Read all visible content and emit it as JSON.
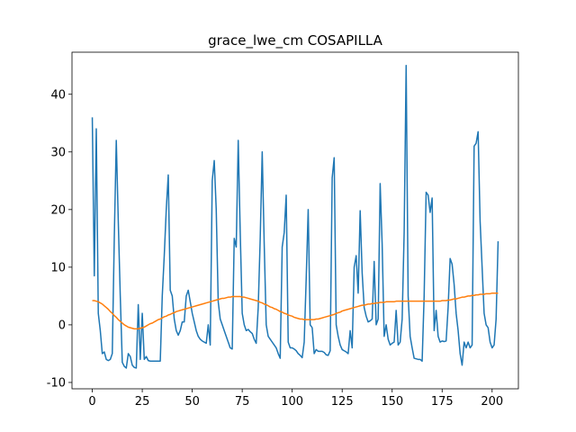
{
  "chart_data": {
    "type": "line",
    "title": "grace_lwe_cm COSAPILLA",
    "x": [
      0,
      1,
      2,
      3,
      4,
      5,
      6,
      7,
      8,
      9,
      10,
      11,
      12,
      13,
      14,
      15,
      16,
      17,
      18,
      19,
      20,
      21,
      22,
      23,
      24,
      25,
      26,
      27,
      28,
      29,
      30,
      31,
      32,
      33,
      34,
      35,
      36,
      37,
      38,
      39,
      40,
      41,
      42,
      43,
      44,
      45,
      46,
      47,
      48,
      49,
      50,
      51,
      52,
      53,
      54,
      55,
      56,
      57,
      58,
      59,
      60,
      61,
      62,
      63,
      64,
      65,
      66,
      67,
      68,
      69,
      70,
      71,
      72,
      73,
      74,
      75,
      76,
      77,
      78,
      79,
      80,
      81,
      82,
      83,
      84,
      85,
      86,
      87,
      88,
      89,
      90,
      91,
      92,
      93,
      94,
      95,
      96,
      97,
      98,
      99,
      100,
      101,
      102,
      103,
      104,
      105,
      106,
      107,
      108,
      109,
      110,
      111,
      112,
      113,
      114,
      115,
      116,
      117,
      118,
      119,
      120,
      121,
      122,
      123,
      124,
      125,
      126,
      127,
      128,
      129,
      130,
      131,
      132,
      133,
      134,
      135,
      136,
      137,
      138,
      139,
      140,
      141,
      142,
      143,
      144,
      145,
      146,
      147,
      148,
      149,
      150,
      151,
      152,
      153,
      154,
      155,
      156,
      157,
      158,
      159,
      160,
      161,
      162,
      163,
      164,
      165,
      166,
      167,
      168,
      169,
      170,
      171,
      172,
      173,
      174,
      175,
      176,
      177,
      178,
      179,
      180,
      181,
      182,
      183,
      184,
      185,
      186,
      187,
      188,
      189,
      190,
      191,
      192,
      193,
      194,
      195,
      196,
      197,
      198,
      199,
      200,
      201,
      202,
      203
    ],
    "series": [
      {
        "color": "#1f77b4",
        "values": [
          36,
          8.5,
          34,
          2,
          -1,
          -5,
          -4.7,
          -6,
          -6.2,
          -6,
          -5,
          15,
          32,
          18,
          5,
          -6.5,
          -7.2,
          -7.5,
          -5,
          -5.5,
          -7,
          -7.4,
          -7.5,
          3.5,
          -6,
          2,
          -6,
          -5.5,
          -6.2,
          -6.3,
          -6.3,
          -6.3,
          -6.3,
          -6.3,
          -6.3,
          5,
          12,
          20,
          26,
          6,
          5,
          1,
          -1,
          -1.8,
          -1,
          0.5,
          0.5,
          5,
          6,
          4,
          2,
          0.5,
          -1,
          -2,
          -2.5,
          -2.8,
          -3,
          -3.2,
          0,
          -3.5,
          25,
          28.5,
          20,
          4,
          1,
          0,
          -1,
          -2,
          -3,
          -4,
          -4.2,
          15,
          13.5,
          32,
          16,
          2,
          0,
          -1,
          -0.8,
          -1.2,
          -1.5,
          -2.5,
          -3.2,
          3,
          15,
          30,
          14,
          0,
          -2,
          -2.5,
          -3,
          -3.5,
          -4,
          -5,
          -5.8,
          13.5,
          16,
          22.5,
          -3,
          -4,
          -4,
          -4.2,
          -4.5,
          -5,
          -5.3,
          -5.7,
          -3,
          8,
          20,
          0,
          -0.5,
          -5,
          -4.3,
          -4.6,
          -4.6,
          -4.6,
          -4.8,
          -5.2,
          -5.3,
          -4.5,
          25.5,
          29,
          0,
          -2,
          -3.5,
          -4.3,
          -4.5,
          -4.7,
          -5,
          -1,
          -4,
          10,
          12,
          5.5,
          19.8,
          9,
          3,
          1.5,
          0.5,
          0.7,
          1,
          11,
          0,
          1,
          24.5,
          14,
          -2,
          0,
          -2.5,
          -3.5,
          -3.2,
          -3,
          2.5,
          -3.5,
          -3,
          1,
          16,
          45,
          5,
          -2,
          -4,
          -5.8,
          -5.9,
          -6,
          -6,
          -6.3,
          5,
          23,
          22.5,
          19.5,
          22,
          -1,
          2.5,
          -2,
          -3,
          -2.8,
          -2.9,
          -2.8,
          3,
          11.5,
          10.5,
          7,
          2,
          -1,
          -5,
          -7,
          -3,
          -4,
          -3,
          -4,
          -3.5,
          31,
          31.5,
          33.5,
          18,
          10,
          2,
          0,
          -0.5,
          -3,
          -4,
          -3.5,
          1,
          14.5
        ]
      },
      {
        "color": "#ff7f0e",
        "values": [
          4.2,
          4.2,
          4.1,
          4.0,
          3.8,
          3.6,
          3.3,
          3.0,
          2.7,
          2.3,
          2.0,
          1.6,
          1.3,
          0.9,
          0.6,
          0.3,
          0.0,
          -0.2,
          -0.4,
          -0.5,
          -0.6,
          -0.7,
          -0.7,
          -0.7,
          -0.6,
          -0.5,
          -0.4,
          -0.2,
          0.0,
          0.2,
          0.3,
          0.5,
          0.7,
          0.9,
          1.0,
          1.2,
          1.4,
          1.5,
          1.7,
          1.8,
          2.0,
          2.1,
          2.3,
          2.4,
          2.5,
          2.6,
          2.7,
          2.8,
          2.9,
          3.0,
          3.1,
          3.2,
          3.3,
          3.4,
          3.5,
          3.6,
          3.7,
          3.8,
          3.9,
          4.0,
          4.1,
          4.2,
          4.3,
          4.4,
          4.5,
          4.6,
          4.6,
          4.7,
          4.8,
          4.8,
          4.9,
          4.9,
          4.9,
          4.9,
          4.9,
          4.8,
          4.8,
          4.7,
          4.6,
          4.5,
          4.4,
          4.3,
          4.2,
          4.1,
          3.9,
          3.8,
          3.6,
          3.5,
          3.3,
          3.1,
          3.0,
          2.8,
          2.7,
          2.5,
          2.3,
          2.2,
          2.0,
          1.9,
          1.7,
          1.6,
          1.5,
          1.3,
          1.2,
          1.1,
          1.0,
          1.0,
          0.9,
          0.9,
          0.9,
          0.9,
          0.9,
          0.9,
          1.0,
          1.0,
          1.1,
          1.2,
          1.3,
          1.4,
          1.5,
          1.6,
          1.7,
          1.8,
          2.0,
          2.1,
          2.2,
          2.4,
          2.5,
          2.6,
          2.7,
          2.8,
          2.9,
          3.0,
          3.1,
          3.2,
          3.3,
          3.4,
          3.4,
          3.5,
          3.6,
          3.6,
          3.7,
          3.7,
          3.8,
          3.8,
          3.9,
          3.9,
          3.9,
          4.0,
          4.0,
          4.0,
          4.0,
          4.0,
          4.1,
          4.1,
          4.1,
          4.1,
          4.1,
          4.1,
          4.1,
          4.1,
          4.1,
          4.1,
          4.1,
          4.1,
          4.1,
          4.1,
          4.1,
          4.1,
          4.1,
          4.1,
          4.1,
          4.1,
          4.1,
          4.1,
          4.1,
          4.2,
          4.2,
          4.2,
          4.3,
          4.3,
          4.4,
          4.5,
          4.5,
          4.6,
          4.7,
          4.8,
          4.8,
          4.9,
          5.0,
          5.0,
          5.1,
          5.1,
          5.2,
          5.2,
          5.3,
          5.3,
          5.3,
          5.4,
          5.4,
          5.4,
          5.5,
          5.5,
          5.5,
          5.5
        ]
      }
    ],
    "xlim": [
      -10.15,
      213.15
    ],
    "ylim": [
      -11.1,
      47.3
    ],
    "xticks": [
      0,
      25,
      50,
      75,
      100,
      125,
      150,
      175,
      200
    ],
    "yticks": [
      -10,
      0,
      10,
      20,
      30,
      40
    ]
  }
}
